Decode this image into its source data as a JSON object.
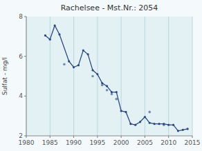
{
  "chart_data": {
    "type": "line",
    "title": "Rachelsee  -  Mst.Nr.:  2054",
    "ylabel": "Sulfat - mg/l",
    "xlim": [
      1980,
      2015
    ],
    "ylim": [
      2,
      8
    ],
    "xticks": [
      1980,
      1985,
      1990,
      1995,
      2000,
      2005,
      2010,
      2015
    ],
    "yticks": [
      2,
      4,
      6,
      8
    ],
    "grid": "x",
    "series": [
      {
        "type": "line",
        "color": "#2b4980",
        "marker": "circle",
        "line_style": "solid",
        "x": [
          1984,
          1985,
          1986,
          1987,
          1989,
          1990,
          1991,
          1992,
          1993,
          1994,
          1995,
          1996,
          1997,
          1998,
          1999,
          2000,
          2001,
          2002,
          2003,
          2004,
          2005,
          2006,
          2007,
          2008,
          2009,
          2010,
          2011,
          2012,
          2013,
          2014
        ],
        "values": [
          7.05,
          6.85,
          7.55,
          7.1,
          5.75,
          5.45,
          5.55,
          6.3,
          6.1,
          5.3,
          5.1,
          4.65,
          4.5,
          4.2,
          4.2,
          3.25,
          3.2,
          2.6,
          2.55,
          2.7,
          2.95,
          2.65,
          2.6,
          2.6,
          2.6,
          2.55,
          2.55,
          2.25,
          2.3,
          2.35
        ]
      },
      {
        "type": "scatter",
        "color": "#2b4980",
        "marker": "circle",
        "x": [
          1988,
          1994,
          1996,
          1997,
          1998,
          1999,
          2006,
          2009
        ],
        "values": [
          5.6,
          5.0,
          4.55,
          4.3,
          4.1,
          3.85,
          3.2,
          2.55
        ]
      }
    ]
  }
}
